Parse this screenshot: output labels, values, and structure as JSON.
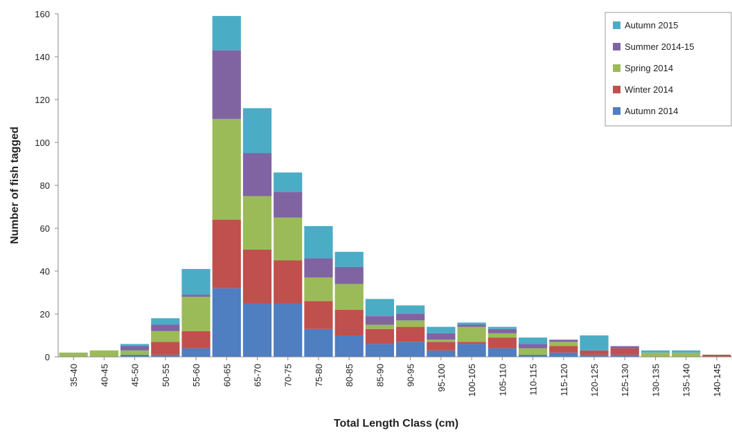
{
  "chart_data": {
    "type": "bar",
    "stacked": true,
    "title": "",
    "xlabel": "Total Length Class (cm)",
    "ylabel": "Number of fish tagged",
    "ylim": [
      0,
      160
    ],
    "yticks": [
      0,
      20,
      40,
      60,
      80,
      100,
      120,
      140,
      160
    ],
    "grid": false,
    "legend_position": "top-right",
    "categories": [
      "35-40",
      "40-45",
      "45-50",
      "50-55",
      "55-60",
      "60-65",
      "65-70",
      "70-75",
      "75-80",
      "80-85",
      "85-90",
      "90-95",
      "95-100",
      "100-105",
      "105-110",
      "110-115",
      "115-120",
      "120-125",
      "125-130",
      "130-135",
      "135-140",
      "140-145"
    ],
    "series": [
      {
        "name": "Autumn 2014",
        "color": "#4f7ec1",
        "values": [
          0,
          0,
          1,
          1,
          4,
          32,
          25,
          25,
          13,
          10,
          6,
          7,
          3,
          6,
          4,
          1,
          2,
          1,
          1,
          0,
          0,
          0
        ]
      },
      {
        "name": "Winter 2014",
        "color": "#c0504d",
        "values": [
          0,
          0,
          0,
          6,
          8,
          32,
          25,
          20,
          13,
          12,
          7,
          7,
          4,
          1,
          5,
          0,
          3,
          2,
          3,
          0,
          0,
          1
        ]
      },
      {
        "name": "Spring 2014",
        "color": "#9bbb59",
        "values": [
          2,
          3,
          2,
          5,
          16,
          47,
          25,
          20,
          11,
          12,
          2,
          3,
          1,
          7,
          2,
          3,
          2,
          0,
          0,
          2,
          2,
          0
        ]
      },
      {
        "name": "Summer 2014-15",
        "color": "#8064a2",
        "values": [
          0,
          0,
          2,
          3,
          1,
          32,
          20,
          12,
          9,
          8,
          4,
          3,
          3,
          1,
          2,
          2,
          1,
          0,
          1,
          0,
          0,
          0
        ]
      },
      {
        "name": "Autumn 2015",
        "color": "#4bacc6",
        "values": [
          0,
          0,
          1,
          3,
          12,
          16,
          21,
          9,
          15,
          7,
          8,
          4,
          3,
          1,
          1,
          3,
          0,
          7,
          0,
          1,
          1,
          0
        ]
      }
    ],
    "legend_order": [
      "Autumn 2015",
      "Summer 2014-15",
      "Spring 2014",
      "Winter 2014",
      "Autumn 2014"
    ]
  }
}
